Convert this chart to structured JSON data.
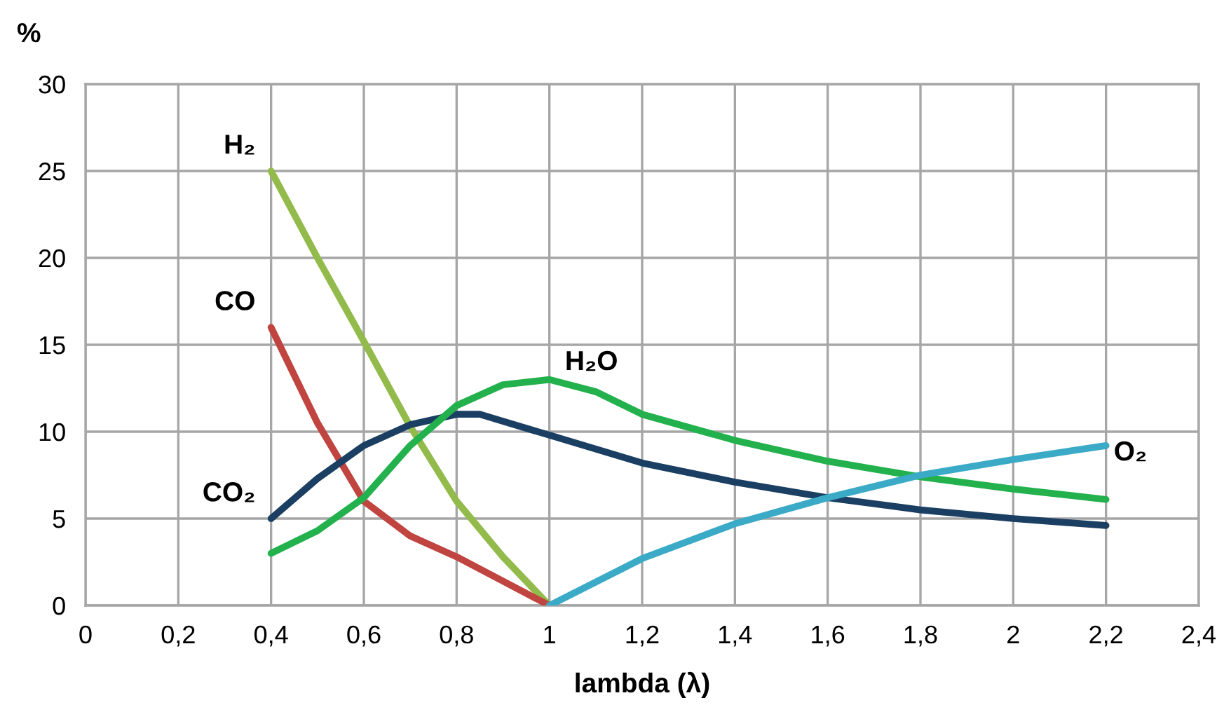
{
  "chart_data": {
    "type": "line",
    "ylabel": "%",
    "xlabel": "lambda (λ)",
    "xlim": [
      0,
      2.4
    ],
    "xticks": [
      0,
      {
        "value": 0.2,
        "label": "0,2"
      },
      {
        "value": 0.4,
        "label": "0,4"
      },
      {
        "value": 0.6,
        "label": "0,6"
      },
      {
        "value": 0.8,
        "label": "0,8"
      },
      1,
      {
        "value": 1.2,
        "label": "1,2"
      },
      {
        "value": 1.4,
        "label": "1,4"
      },
      {
        "value": 1.6,
        "label": "1,6"
      },
      {
        "value": 1.8,
        "label": "1,8"
      },
      2,
      {
        "value": 2.2,
        "label": "2,2"
      },
      {
        "value": 2.4,
        "label": "2,4"
      }
    ],
    "ylim": [
      0,
      30
    ],
    "yticks": [
      0,
      5,
      10,
      15,
      20,
      25,
      30
    ],
    "grid": true,
    "legend": false,
    "marker": "none",
    "line_style": "solid",
    "series": [
      {
        "name": "H₂",
        "color": "#93bb4b",
        "x": [
          0.4,
          0.5,
          0.6,
          0.7,
          0.8,
          0.9,
          1
        ],
        "values": [
          25,
          20,
          15.2,
          10.3,
          6,
          2.8,
          0
        ]
      },
      {
        "name": "CO",
        "color": "#c0443f",
        "x": [
          0.4,
          0.5,
          0.6,
          0.7,
          0.8,
          0.9,
          1
        ],
        "values": [
          16,
          10.5,
          6,
          4,
          2.8,
          1.4,
          0
        ]
      },
      {
        "name": "CO₂",
        "color": "#1b3f62",
        "x": [
          0.4,
          0.5,
          0.6,
          0.7,
          0.8,
          0.85,
          0.9,
          1,
          1.2,
          1.4,
          1.6,
          1.8,
          2,
          2.2
        ],
        "values": [
          5,
          7.3,
          9.2,
          10.4,
          11,
          11,
          10.6,
          9.8,
          8.2,
          7.1,
          6.2,
          5.5,
          5,
          4.6
        ]
      },
      {
        "name": "H₂O",
        "color": "#22b14c",
        "x": [
          0.4,
          0.5,
          0.6,
          0.7,
          0.8,
          0.9,
          1,
          1.1,
          1.2,
          1.4,
          1.6,
          1.8,
          2,
          2.2
        ],
        "values": [
          3,
          4.3,
          6.2,
          9.2,
          11.5,
          12.7,
          13,
          12.3,
          11,
          9.5,
          8.3,
          7.4,
          6.7,
          6.1
        ]
      },
      {
        "name": "O₂",
        "color": "#3aaac6",
        "x": [
          1,
          1.2,
          1.4,
          1.6,
          1.8,
          2,
          2.2
        ],
        "values": [
          0,
          2.7,
          4.7,
          6.2,
          7.5,
          8.4,
          9.2
        ]
      }
    ]
  }
}
